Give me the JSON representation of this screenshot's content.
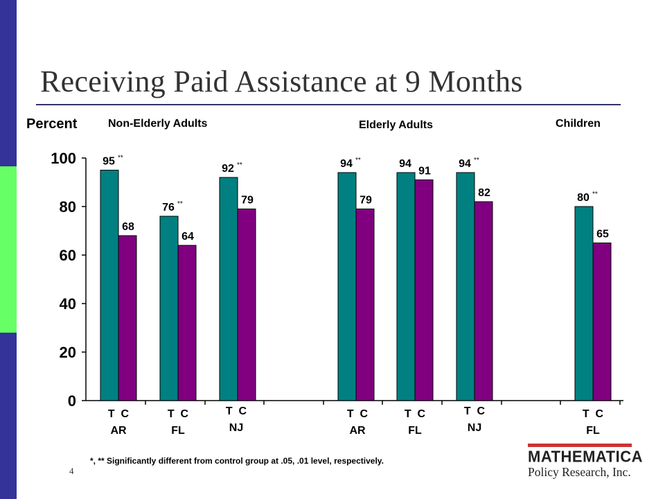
{
  "slide": {
    "title": "Receiving Paid Assistance at 9 Months",
    "page_number": "4",
    "footnote": "*, ** Significantly different from control group at .05, .01 level, respectively.",
    "logo_line1": "MATHEMATICA",
    "logo_line2": "Policy Research, Inc.",
    "colors": {
      "sidebar": "#333399",
      "sidebar_accent": "#66ff66",
      "treatment": "#008080",
      "control": "#800080",
      "logo_accent": "#cc3333"
    }
  },
  "chart_data": {
    "type": "bar",
    "ylabel": "Percent",
    "ylim": [
      0,
      100
    ],
    "yticks": [
      0,
      20,
      40,
      60,
      80,
      100
    ],
    "group_labels": [
      "Non-Elderly Adults",
      "Elderly Adults",
      "Children"
    ],
    "clusters": [
      {
        "group": "Non-Elderly Adults",
        "state": "AR",
        "tc_label": "T  C",
        "treatment": 95,
        "control": 68,
        "sig": "**"
      },
      {
        "group": "Non-Elderly Adults",
        "state": "FL",
        "tc_label": "T  C",
        "treatment": 76,
        "control": 64,
        "sig": "**"
      },
      {
        "group": "Non-Elderly Adults",
        "state": "NJ",
        "tc_label": "T  C",
        "treatment": 92,
        "control": 79,
        "sig": "**"
      },
      {
        "group": "Elderly Adults",
        "state": "AR",
        "tc_label": "T  C",
        "treatment": 94,
        "control": 79,
        "sig": "**"
      },
      {
        "group": "Elderly Adults",
        "state": "FL",
        "tc_label": "T  C",
        "treatment": 94,
        "control": 91,
        "sig": ""
      },
      {
        "group": "Elderly Adults",
        "state": "NJ",
        "tc_label": "T  C",
        "treatment": 94,
        "control": 82,
        "sig": "**"
      },
      {
        "group": "Children",
        "state": "FL",
        "tc_label": "T  C",
        "treatment": 80,
        "control": 65,
        "sig": "**"
      }
    ]
  }
}
